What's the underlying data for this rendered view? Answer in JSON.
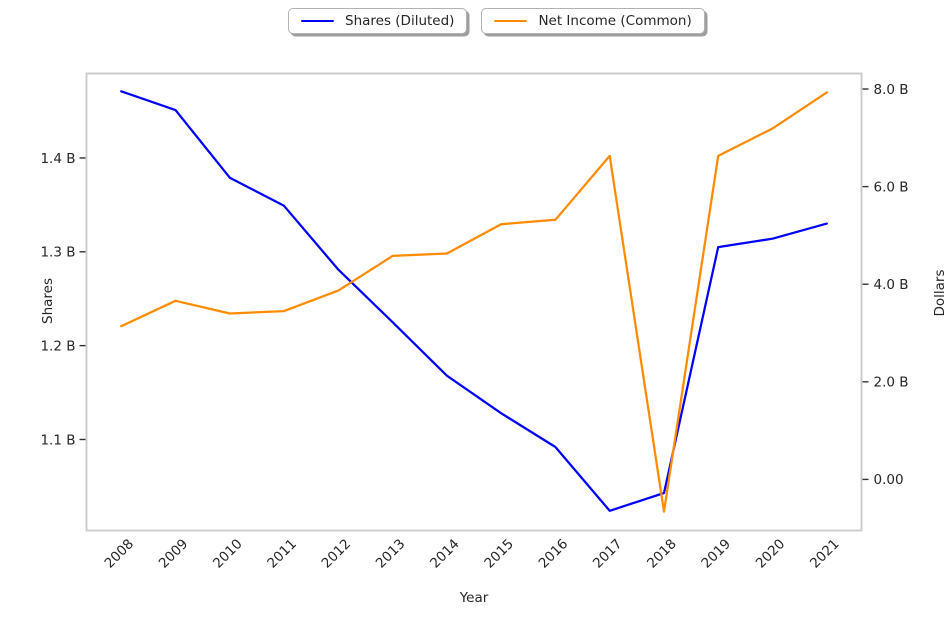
{
  "style": {
    "background": "#ffffff",
    "frame_color": "#c9c9c9",
    "tick_mark_color": "#333333",
    "text_color": "#262626"
  },
  "legend": {
    "items": [
      {
        "label": "Shares (Diluted)",
        "color": "#0000ff"
      },
      {
        "label": "Net Income (Common)",
        "color": "#ff8c00"
      }
    ]
  },
  "axis_labels": {
    "x": "Year",
    "y_left": "Shares",
    "y_right": "Dollars"
  },
  "chart_data": {
    "type": "line",
    "title": "",
    "xlabel": "Year",
    "x": [
      2008,
      2009,
      2010,
      2011,
      2012,
      2013,
      2014,
      2015,
      2016,
      2017,
      2018,
      2019,
      2020,
      2021
    ],
    "x_tick_labels": [
      "2008",
      "2009",
      "2010",
      "2011",
      "2012",
      "2013",
      "2014",
      "2015",
      "2016",
      "2017",
      "2018",
      "2019",
      "2020",
      "2021"
    ],
    "x_tick_rotation": 45,
    "xlim": [
      2007.36,
      2021.64
    ],
    "grid": false,
    "legend_position": "top-center",
    "series": [
      {
        "name": "Shares (Diluted)",
        "axis": "left",
        "color": "#0000ff",
        "unit": "billions of shares",
        "values": [
          1.471,
          1.451,
          1.379,
          1.349,
          1.281,
          1.225,
          1.168,
          1.128,
          1.092,
          1.024,
          1.043,
          1.305,
          1.314,
          1.33
        ]
      },
      {
        "name": "Net Income (Common)",
        "axis": "right",
        "color": "#ff8c00",
        "unit": "billions of dollars",
        "values": [
          3.14,
          3.66,
          3.4,
          3.45,
          3.87,
          4.58,
          4.63,
          5.23,
          5.32,
          6.63,
          -0.66,
          6.63,
          7.19,
          7.93
        ]
      }
    ],
    "y_left": {
      "label": "Shares",
      "ticks": [
        1.1,
        1.2,
        1.3,
        1.4
      ],
      "tick_labels": [
        "1.1 B",
        "1.2 B",
        "1.3 B",
        "1.4 B"
      ],
      "lim": [
        1.003,
        1.49
      ]
    },
    "y_right": {
      "label": "Dollars",
      "ticks": [
        0,
        2,
        4,
        6,
        8
      ],
      "tick_labels": [
        "0.00",
        "2.0 B",
        "4.0 B",
        "6.0 B",
        "8.0 B"
      ],
      "lim": [
        -1.047,
        8.318
      ]
    }
  }
}
